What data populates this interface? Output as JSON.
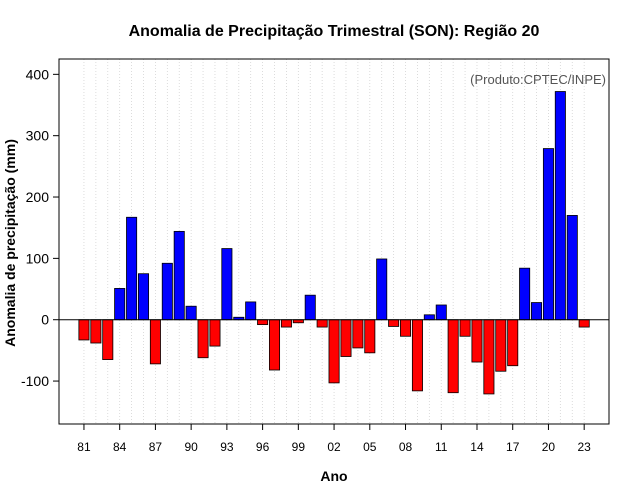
{
  "chart_data": {
    "type": "bar",
    "title": "Anomalia de Precipitação Trimestral (SON): Região 20",
    "xlabel": "Ano",
    "ylabel": "Anomalia de precipitação (mm)",
    "credit": "(Produto:CPTEC/INPE)",
    "ylim": [
      -170,
      425
    ],
    "yticks": [
      -100,
      0,
      100,
      200,
      300,
      400
    ],
    "xtick_labels": [
      "81",
      "84",
      "87",
      "90",
      "93",
      "96",
      "99",
      "02",
      "05",
      "08",
      "11",
      "14",
      "17",
      "20",
      "23"
    ],
    "xtick_every": 3,
    "grid": true,
    "colors": {
      "positive": "#0000ff",
      "negative": "#ff0000"
    },
    "categories": [
      "1981",
      "1982",
      "1983",
      "1984",
      "1985",
      "1986",
      "1987",
      "1988",
      "1989",
      "1990",
      "1991",
      "1992",
      "1993",
      "1994",
      "1995",
      "1996",
      "1997",
      "1998",
      "1999",
      "2000",
      "2001",
      "2002",
      "2003",
      "2004",
      "2005",
      "2006",
      "2007",
      "2008",
      "2009",
      "2010",
      "2011",
      "2012",
      "2013",
      "2014",
      "2015",
      "2016",
      "2017",
      "2018",
      "2019",
      "2020",
      "2021",
      "2022",
      "2023"
    ],
    "values": [
      -33,
      -38,
      -65,
      51,
      167,
      75,
      -72,
      92,
      144,
      22,
      -62,
      -43,
      116,
      4,
      29,
      -8,
      -82,
      -12,
      -5,
      40,
      -12,
      -103,
      -60,
      -46,
      -54,
      99,
      -11,
      -27,
      -116,
      8,
      24,
      -119,
      -27,
      -69,
      -121,
      -84,
      -75,
      84,
      28,
      279,
      372,
      170,
      -12
    ]
  }
}
